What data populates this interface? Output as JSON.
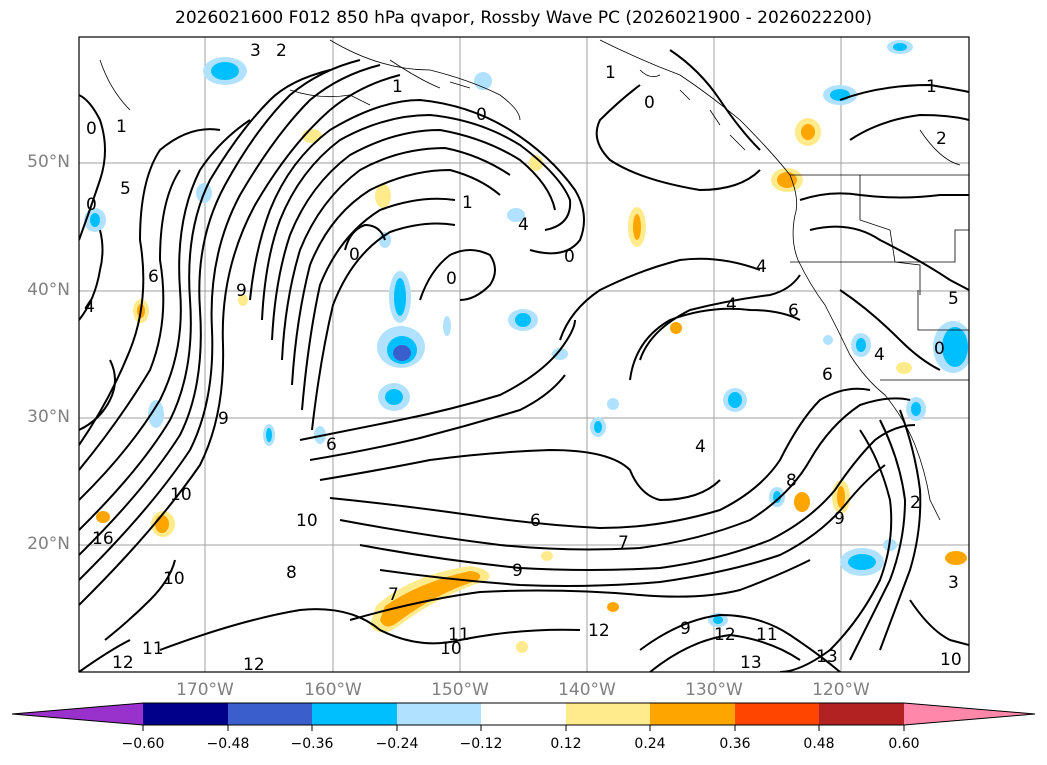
{
  "title": "2026021600 F012 850 hPa qvapor, Rossby Wave PC (2026021900 - 2026022200)",
  "map": {
    "lat_ticks": [
      "50°N",
      "40°N",
      "30°N",
      "20°N"
    ],
    "lon_ticks": [
      "170°W",
      "160°W",
      "150°W",
      "140°W",
      "130°W",
      "120°W"
    ],
    "contour_labels": [
      "3",
      "2",
      "1",
      "0",
      "1",
      "0",
      "1",
      "2",
      "0",
      "1",
      "5",
      "0",
      "6",
      "9",
      "4",
      "1",
      "0",
      "0",
      "4",
      "0",
      "4",
      "6",
      "4",
      "5",
      "0",
      "4",
      "6",
      "9",
      "6",
      "4",
      "8",
      "10",
      "10",
      "16",
      "10",
      "8",
      "7",
      "6",
      "7",
      "9",
      "12",
      "9",
      "12",
      "11",
      "11",
      "12",
      "10",
      "11",
      "13",
      "13",
      "10",
      "9",
      "3",
      "2",
      "12"
    ]
  },
  "colorbar": {
    "colors": [
      "#9932cc",
      "#00008b",
      "#3a5fcd",
      "#00bfff",
      "#b0e2ff",
      "#ffffff",
      "#ffeb8c",
      "#ffa500",
      "#ff4500",
      "#b22222",
      "#ff88aa"
    ],
    "tick_labels": [
      "−0.60",
      "−0.48",
      "−0.36",
      "−0.24",
      "−0.12",
      "0.12",
      "0.24",
      "0.36",
      "0.48",
      "0.60"
    ]
  },
  "colors": {
    "grid": "#a0a0a0",
    "contour": "#000000",
    "tick_text": "#808080"
  }
}
